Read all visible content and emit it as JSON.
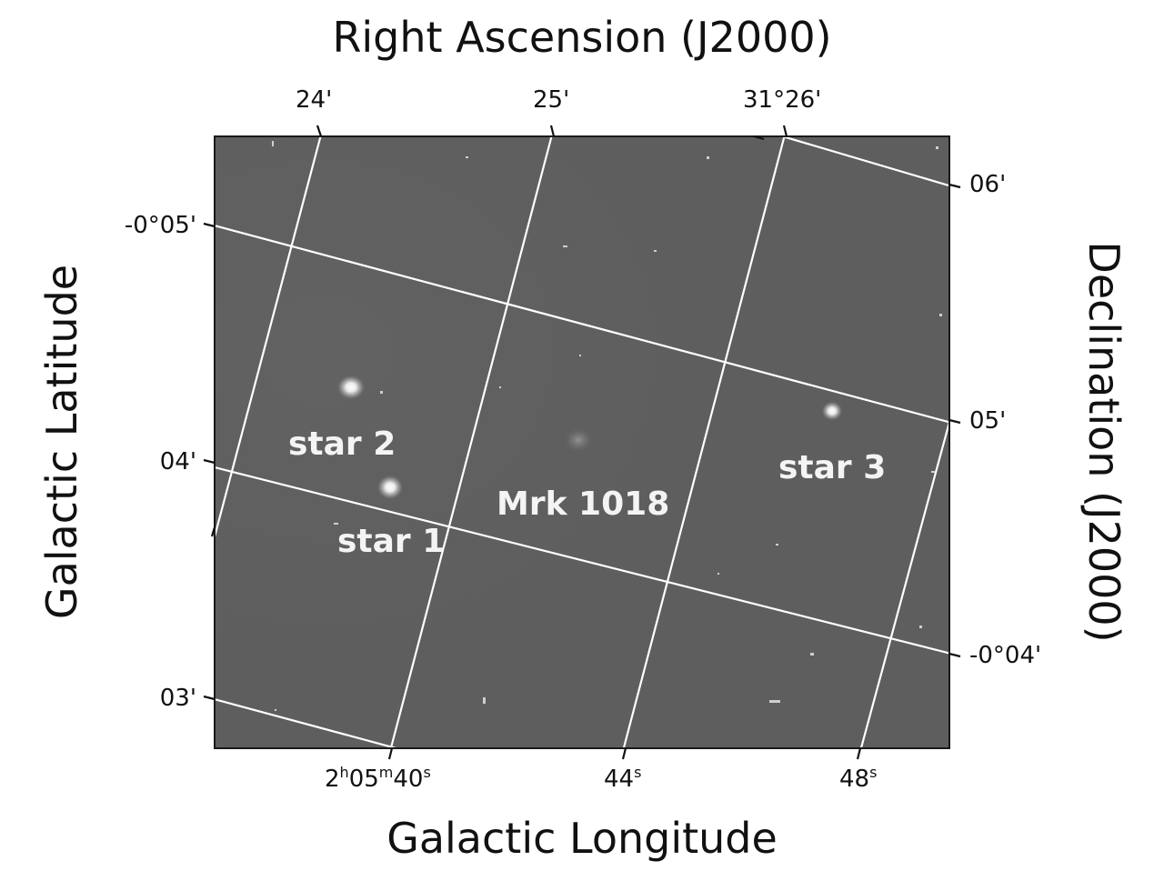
{
  "titles": {
    "top": "Right Ascension (J2000)",
    "bottom": "Galactic Longitude",
    "left": "Galactic Latitude",
    "right": "Declination (J2000)"
  },
  "ticks": {
    "top": [
      "24'",
      "25'",
      "31°26'"
    ],
    "left": [
      "-0°05'",
      "04'",
      "03'"
    ],
    "right": [
      "06'",
      "05'",
      "-0°04'"
    ],
    "bottom": [
      {
        "base": "2",
        "h": "h",
        "mid": "05",
        "m": "m",
        "num": "40",
        "s": "s"
      },
      {
        "num": "44",
        "s": "s"
      },
      {
        "num": "48",
        "s": "s"
      }
    ]
  },
  "objects": {
    "star2": "star 2",
    "star1": "star 1",
    "mrk": "Mrk 1018",
    "star3": "star 3"
  },
  "colors": {
    "sky": "#5e5e5e",
    "grid": "#ffffff",
    "label": "#f4f4f4"
  }
}
